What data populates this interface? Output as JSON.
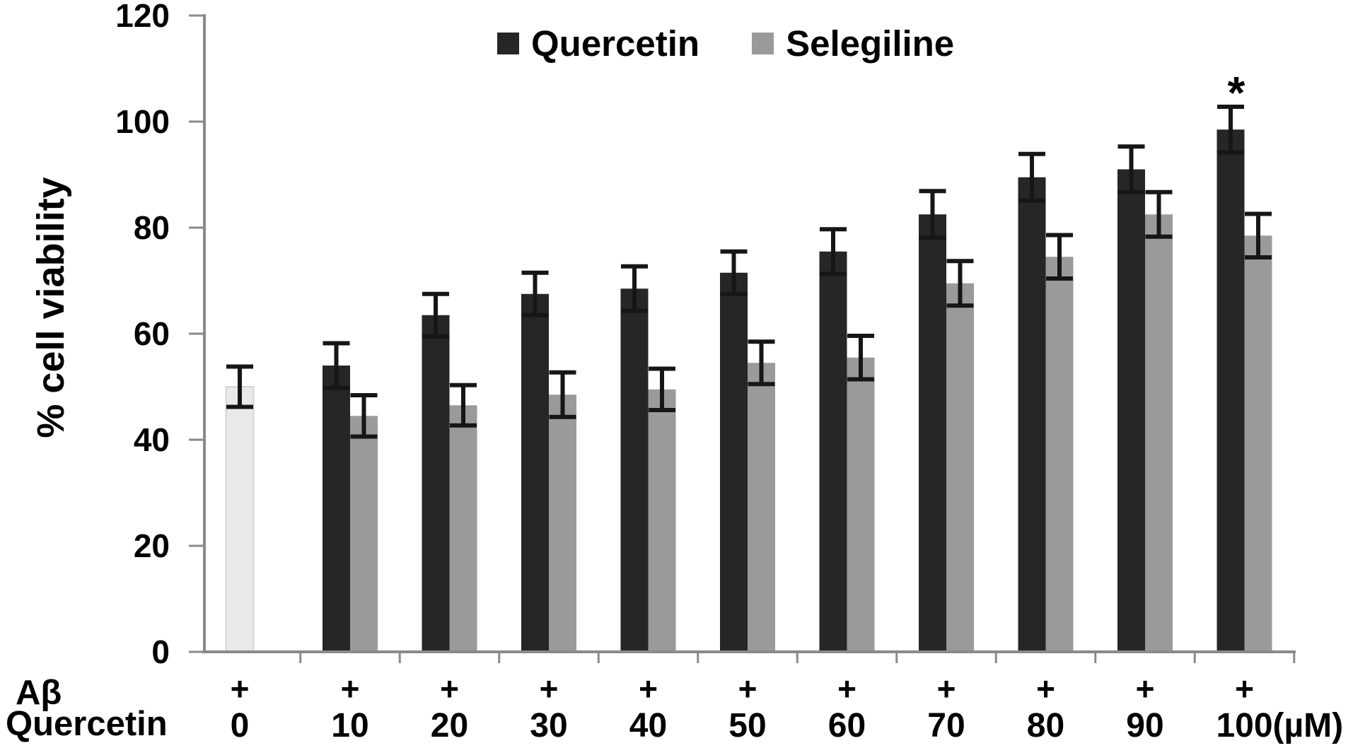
{
  "colors": {
    "background": "#ffffff",
    "axis": "#8a8a8a",
    "error": "#161616",
    "text": "#000000"
  },
  "chart_data": {
    "type": "bar",
    "title": "",
    "ylabel": "% cell viability",
    "ylim": [
      0,
      120
    ],
    "yticks": [
      0,
      20,
      40,
      60,
      80,
      100,
      120
    ],
    "grid": false,
    "legend_position": "top-center",
    "categories": [
      "0",
      "10",
      "20",
      "30",
      "40",
      "50",
      "60",
      "70",
      "80",
      "90",
      "100"
    ],
    "x_unit": "(µM)",
    "row1_label": "Aβ",
    "row1_markers": [
      "+",
      "+",
      "+",
      "+",
      "+",
      "+",
      "+",
      "+",
      "+",
      "+",
      "+"
    ],
    "row2_label": "Quercetin",
    "control": {
      "category": "0",
      "value": 50,
      "error": 3.8,
      "color": "#e9e9e9",
      "border": "#d4d4d4"
    },
    "series": [
      {
        "name": "Quercetin",
        "color": "#262626",
        "values": [
          null,
          54,
          63.5,
          67.5,
          68.5,
          71.5,
          75.5,
          82.5,
          89.5,
          91,
          98.5
        ],
        "errors": [
          null,
          4.2,
          4.0,
          4.0,
          4.2,
          4.0,
          4.2,
          4.4,
          4.4,
          4.3,
          4.3
        ]
      },
      {
        "name": "Selegiline",
        "color": "#9a9a9a",
        "values": [
          null,
          44.5,
          46.5,
          48.5,
          49.5,
          54.5,
          55.5,
          69.5,
          74.5,
          82.5,
          78.5
        ],
        "errors": [
          null,
          3.9,
          3.8,
          4.2,
          3.9,
          4.0,
          4.1,
          4.2,
          4.1,
          4.2,
          4.1
        ]
      }
    ],
    "annotation": {
      "text": "*",
      "category_index": 10,
      "series_index": 0
    }
  }
}
